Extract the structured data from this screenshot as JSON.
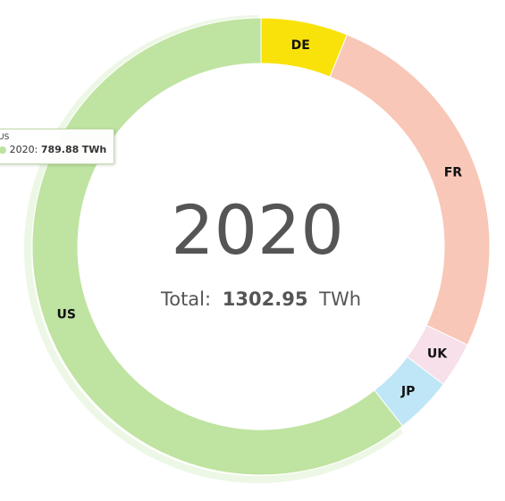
{
  "chart_data": {
    "type": "pie",
    "variant": "donut",
    "start_angle_note": "clockwise from top",
    "center": {
      "year": "2020",
      "total_label": "Total:",
      "total_value": "1302.95",
      "total_unit": "TWh"
    },
    "slices": [
      {
        "name": "DE",
        "value": 80.0,
        "color": "#f9e20a"
      },
      {
        "name": "FR",
        "value": 338.0,
        "color": "#f8c7b8"
      },
      {
        "name": "UK",
        "value": 42.0,
        "color": "#f7e0ea"
      },
      {
        "name": "JP",
        "value": 53.07,
        "color": "#bfe6f7"
      },
      {
        "name": "US",
        "value": 789.88,
        "color": "#bfe3a0"
      }
    ],
    "tooltip": {
      "series_name": "US",
      "label": "2020:",
      "value": "789.88",
      "unit": "TWh"
    }
  }
}
